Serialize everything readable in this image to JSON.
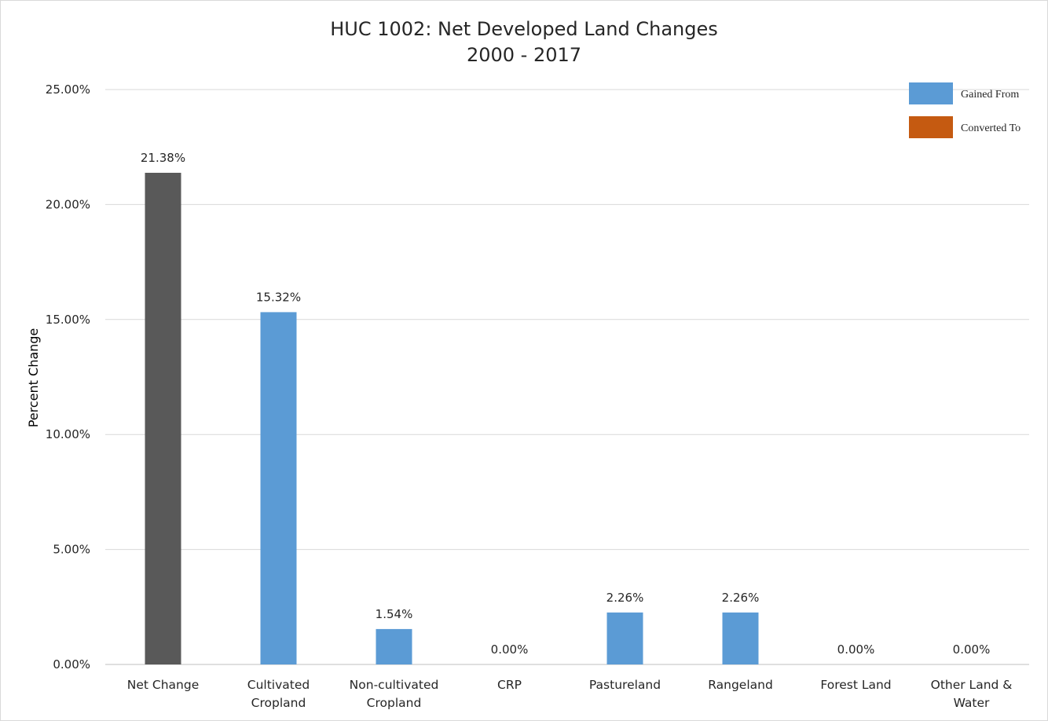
{
  "chart_data": {
    "type": "bar",
    "title": [
      "HUC 1002: Net Developed Land Changes",
      "2000 - 2017"
    ],
    "ylabel": "Percent Change",
    "xlabel": "",
    "ylim": [
      0,
      25
    ],
    "yticks": [
      0,
      5,
      10,
      15,
      20,
      25
    ],
    "ytick_labels": [
      "0.00%",
      "5.00%",
      "10.00%",
      "15.00%",
      "20.00%",
      "25.00%"
    ],
    "grid": true,
    "legend_position": "top-right",
    "categories": [
      [
        "Net Change"
      ],
      [
        "Cultivated",
        "Cropland"
      ],
      [
        "Non-cultivated",
        "Cropland"
      ],
      [
        "CRP"
      ],
      [
        "Pastureland"
      ],
      [
        "Rangeland"
      ],
      [
        "Forest Land"
      ],
      [
        "Other Land &",
        "Water"
      ]
    ],
    "values": [
      21.38,
      15.32,
      1.54,
      0.0,
      2.26,
      2.26,
      0.0,
      0.0
    ],
    "value_labels": [
      "21.38%",
      "15.32%",
      "1.54%",
      "0.00%",
      "2.26%",
      "2.26%",
      "0.00%",
      "0.00%"
    ],
    "bar_colors": [
      "#595959",
      "#5b9bd5",
      "#5b9bd5",
      "#5b9bd5",
      "#5b9bd5",
      "#5b9bd5",
      "#5b9bd5",
      "#5b9bd5"
    ],
    "legend": [
      {
        "label": "Gained From",
        "color": "#5b9bd5"
      },
      {
        "label": "Converted To",
        "color": "#c55a11"
      }
    ],
    "gridline_color": "#d9d9d9",
    "axis_color": "#bfbfbf"
  }
}
